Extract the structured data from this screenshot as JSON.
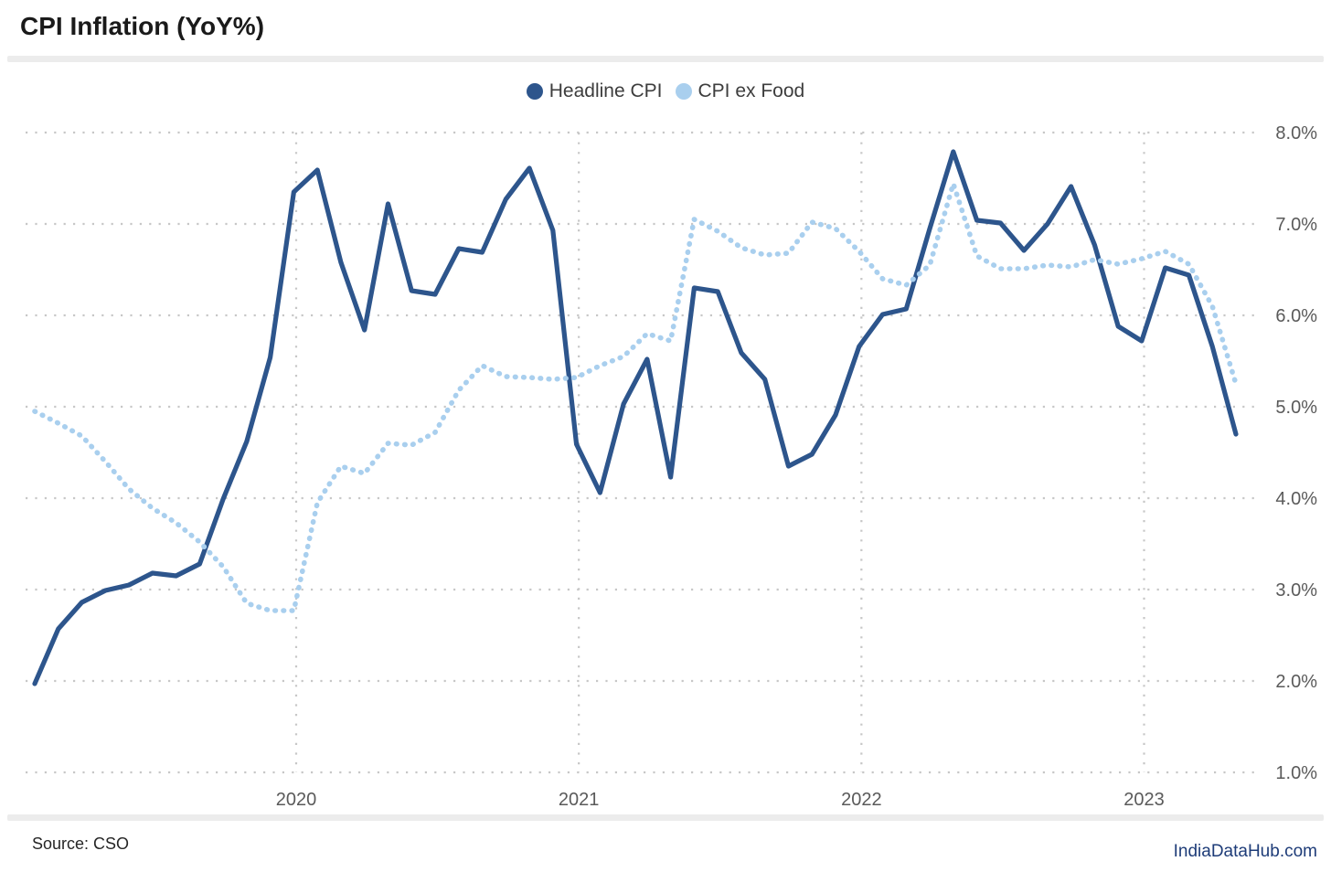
{
  "title": "CPI Inflation (YoY%)",
  "legend": [
    {
      "label": "Headline CPI",
      "color": "#2d558c"
    },
    {
      "label": "CPI ex Food",
      "color": "#a9cfee"
    }
  ],
  "footer": {
    "source": "Source: CSO",
    "brand": "IndiaDataHub.com"
  },
  "colors": {
    "grid": "#c7c7c7",
    "axis_text": "#5a5a5a",
    "headline_line": "#2d558c",
    "exfood_line": "#a9cfee"
  },
  "chart_data": {
    "type": "line",
    "title": "CPI Inflation (YoY%)",
    "x_unit": "month",
    "x_start": "2019-01",
    "x_end": "2023-04",
    "grid": true,
    "legend_position": "top-center",
    "ylim": [
      1.0,
      8.0
    ],
    "y_ticks": [
      {
        "value": 8,
        "label": "8.0%"
      },
      {
        "value": 7,
        "label": "7.0%"
      },
      {
        "value": 6,
        "label": "6.0%"
      },
      {
        "value": 5,
        "label": "5.0%"
      },
      {
        "value": 4,
        "label": "4.0%"
      },
      {
        "value": 3,
        "label": "3.0%"
      },
      {
        "value": 2,
        "label": "2.0%"
      },
      {
        "value": 1,
        "label": "1.0%"
      }
    ],
    "x_ticks": [
      {
        "label": "2020"
      },
      {
        "label": "2021"
      },
      {
        "label": "2022"
      },
      {
        "label": "2023"
      }
    ],
    "series": [
      {
        "name": "Headline CPI",
        "style": "solid",
        "color": "#2d558c",
        "values": [
          1.97,
          2.57,
          2.86,
          2.99,
          3.05,
          3.18,
          3.15,
          3.28,
          3.99,
          4.62,
          5.54,
          7.35,
          7.59,
          6.58,
          5.84,
          7.22,
          6.27,
          6.23,
          6.73,
          6.69,
          7.27,
          7.61,
          6.93,
          4.59,
          4.06,
          5.03,
          5.52,
          4.23,
          6.3,
          6.26,
          5.59,
          5.3,
          4.35,
          4.48,
          4.91,
          5.66,
          6.01,
          6.07,
          6.95,
          7.79,
          7.04,
          7.01,
          6.71,
          7.0,
          7.41,
          6.77,
          5.88,
          5.72,
          6.52,
          6.44,
          5.66,
          4.7
        ]
      },
      {
        "name": "CPI ex Food",
        "style": "dotted",
        "color": "#a9cfee",
        "values": [
          4.95,
          4.82,
          4.68,
          4.4,
          4.1,
          3.89,
          3.73,
          3.52,
          3.25,
          2.85,
          2.77,
          2.77,
          3.95,
          4.35,
          4.27,
          4.6,
          4.58,
          4.72,
          5.18,
          5.45,
          5.33,
          5.32,
          5.3,
          5.32,
          5.45,
          5.55,
          5.8,
          5.72,
          7.05,
          6.92,
          6.74,
          6.66,
          6.68,
          7.02,
          6.95,
          6.7,
          6.4,
          6.33,
          6.55,
          7.44,
          6.65,
          6.51,
          6.51,
          6.55,
          6.53,
          6.61,
          6.56,
          6.62,
          6.7,
          6.56,
          6.1,
          5.25
        ]
      }
    ]
  }
}
